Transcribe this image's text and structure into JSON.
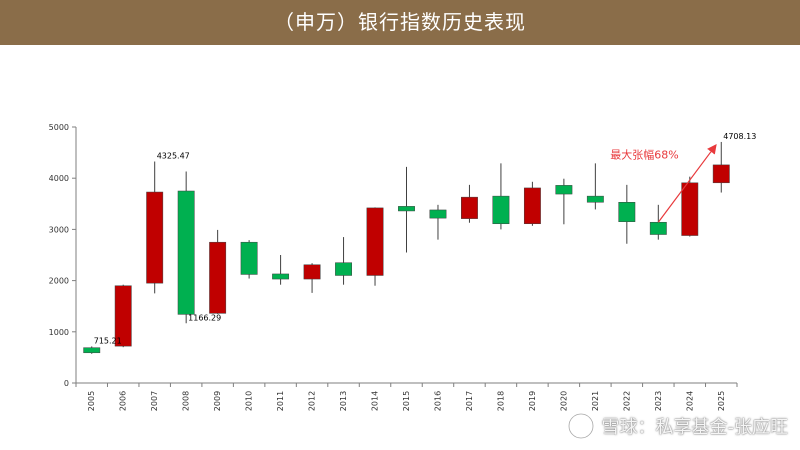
{
  "header": {
    "title": "（申万）银行指数历史表现"
  },
  "colors": {
    "header_bg": "#8a6d49",
    "up": "#c00000",
    "down": "#00b050",
    "annotation": "#e8393c"
  },
  "watermark": {
    "logo_icon": "snowball-logo-icon",
    "text": "雪球：私享基金-张应旺"
  },
  "chart_data": {
    "type": "candlestick",
    "title": "",
    "xlabel": "",
    "ylabel": "",
    "ylim": [
      0,
      5000
    ],
    "yticks": [
      0,
      1000,
      2000,
      3000,
      4000,
      5000
    ],
    "grid": false,
    "categories": [
      "2005",
      "2006",
      "2007",
      "2008",
      "2009",
      "2010",
      "2011",
      "2012",
      "2013",
      "2014",
      "2015",
      "2016",
      "2017",
      "2018",
      "2019",
      "2020",
      "2021",
      "2022",
      "2023",
      "2024",
      "2025"
    ],
    "candles": [
      {
        "year": "2005",
        "open": 690,
        "close": 590,
        "high": 715,
        "low": 570
      },
      {
        "year": "2006",
        "open": 720,
        "close": 1900,
        "high": 1920,
        "low": 700
      },
      {
        "year": "2007",
        "open": 1950,
        "close": 3730,
        "high": 4325,
        "low": 1750
      },
      {
        "year": "2008",
        "open": 3750,
        "close": 1340,
        "high": 4130,
        "low": 1166
      },
      {
        "year": "2009",
        "open": 1360,
        "close": 2750,
        "high": 2990,
        "low": 1350
      },
      {
        "year": "2010",
        "open": 2750,
        "close": 2120,
        "high": 2790,
        "low": 2040
      },
      {
        "year": "2011",
        "open": 2130,
        "close": 2030,
        "high": 2500,
        "low": 1920
      },
      {
        "year": "2012",
        "open": 2030,
        "close": 2310,
        "high": 2340,
        "low": 1760
      },
      {
        "year": "2013",
        "open": 2350,
        "close": 2100,
        "high": 2850,
        "low": 1920
      },
      {
        "year": "2014",
        "open": 2100,
        "close": 3420,
        "high": 3430,
        "low": 1900
      },
      {
        "year": "2015",
        "open": 3450,
        "close": 3360,
        "high": 4220,
        "low": 2550
      },
      {
        "year": "2016",
        "open": 3380,
        "close": 3220,
        "high": 3480,
        "low": 2800
      },
      {
        "year": "2017",
        "open": 3210,
        "close": 3630,
        "high": 3870,
        "low": 3130
      },
      {
        "year": "2018",
        "open": 3650,
        "close": 3110,
        "high": 4290,
        "low": 3000
      },
      {
        "year": "2019",
        "open": 3110,
        "close": 3810,
        "high": 3930,
        "low": 3070
      },
      {
        "year": "2020",
        "open": 3860,
        "close": 3690,
        "high": 3990,
        "low": 3100
      },
      {
        "year": "2021",
        "open": 3650,
        "close": 3530,
        "high": 4290,
        "low": 3390
      },
      {
        "year": "2022",
        "open": 3530,
        "close": 3150,
        "high": 3870,
        "low": 2720
      },
      {
        "year": "2023",
        "open": 3140,
        "close": 2900,
        "high": 3480,
        "low": 2800
      },
      {
        "year": "2024",
        "open": 2880,
        "close": 3910,
        "high": 4030,
        "low": 2860
      },
      {
        "year": "2025",
        "open": 3910,
        "close": 4260,
        "high": 4708,
        "low": 3720
      }
    ],
    "data_labels": [
      {
        "text": "715.21",
        "year": "2005",
        "value": 715.21
      },
      {
        "text": "4325.47",
        "year": "2007",
        "value": 4325.47
      },
      {
        "text": "1166.29",
        "year": "2008",
        "value": 1166.29
      },
      {
        "text": "4708.13",
        "year": "2025",
        "value": 4708.13
      }
    ],
    "annotations": [
      {
        "text": "最大张幅68%",
        "from": {
          "year": "2023",
          "value": 3140
        },
        "to": {
          "year": "2025",
          "value": 4708
        }
      }
    ]
  }
}
